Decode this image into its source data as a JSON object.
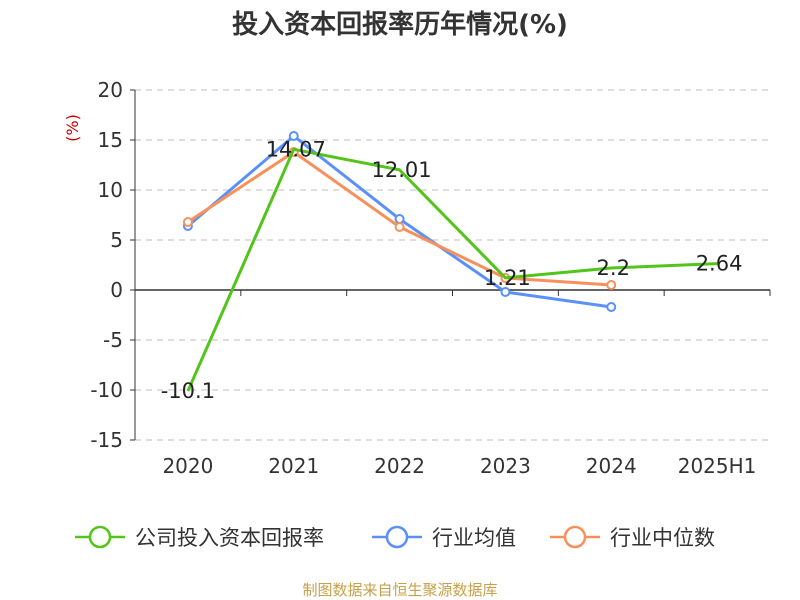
{
  "chart_data": {
    "type": "line",
    "title": "投入资本回报率历年情况(%)",
    "ylabel": "(%)",
    "xlabel": "",
    "categories": [
      "2020",
      "2021",
      "2022",
      "2023",
      "2024",
      "2025H1"
    ],
    "ylim": [
      -15,
      20
    ],
    "yticks": [
      20,
      15,
      10,
      5,
      0,
      -5,
      -10,
      -15
    ],
    "grid": true,
    "legend_position": "bottom",
    "series": [
      {
        "name": "公司投入资本回报率",
        "color": "#52c41a",
        "values": [
          -10.1,
          14.07,
          12.01,
          1.21,
          2.2,
          2.64
        ],
        "labels": [
          "-10.1",
          "14.07",
          "12.01",
          "1.21",
          "2.2",
          "2.64"
        ],
        "markers": false
      },
      {
        "name": "行业均值",
        "color": "#5b8ff9",
        "values": [
          6.4,
          15.4,
          7.1,
          -0.2,
          -1.7,
          null
        ],
        "markers": true
      },
      {
        "name": "行业中位数",
        "color": "#f7905a",
        "values": [
          6.8,
          13.8,
          6.3,
          1.2,
          0.5,
          null
        ],
        "markers": true
      }
    ]
  },
  "source": "制图数据来自恒生聚源数据库"
}
